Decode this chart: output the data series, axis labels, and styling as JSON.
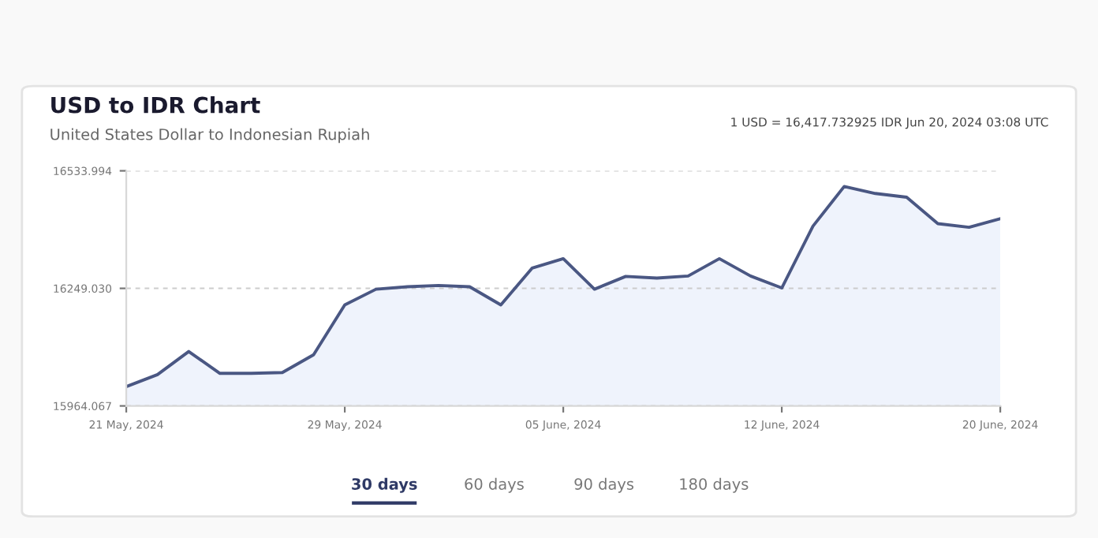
{
  "chart_data": {
    "type": "area",
    "title": "USD to IDR Chart",
    "subtitle": "United States Dollar to Indonesian Rupiah",
    "annotations": [
      "1 USD = 16,417.732925 IDR Jun 20, 2024 03:08 UTC",
      "30 days",
      "60 days",
      "90 days",
      "180 days"
    ],
    "categories": [
      "21 May, 2024",
      null,
      null,
      null,
      null,
      null,
      null,
      "29 May, 2024",
      null,
      null,
      null,
      null,
      null,
      null,
      "05 June, 2024",
      null,
      null,
      null,
      null,
      null,
      null,
      "12 June, 2024",
      null,
      null,
      null,
      null,
      null,
      null,
      "20 June, 2024"
    ],
    "series": [
      {
        "color": "#4a5783",
        "values": [
          16011,
          16040,
          16096,
          16043,
          16043,
          16045,
          16088,
          16209,
          16247,
          16253,
          16256,
          16253,
          16209,
          16298,
          16321,
          16247,
          16278,
          16274,
          16279,
          16321,
          16279,
          16250,
          16400,
          16496,
          16479,
          16470,
          16406,
          16397,
          16418
        ]
      }
    ],
    "ylim": [
      15964.067,
      16533.994
    ],
    "yticks": [
      15964.067,
      {
        "value": 16249.03,
        "label": "16249.030"
      },
      16533.994
    ],
    "grid": "y",
    "line_style": "solid"
  }
}
